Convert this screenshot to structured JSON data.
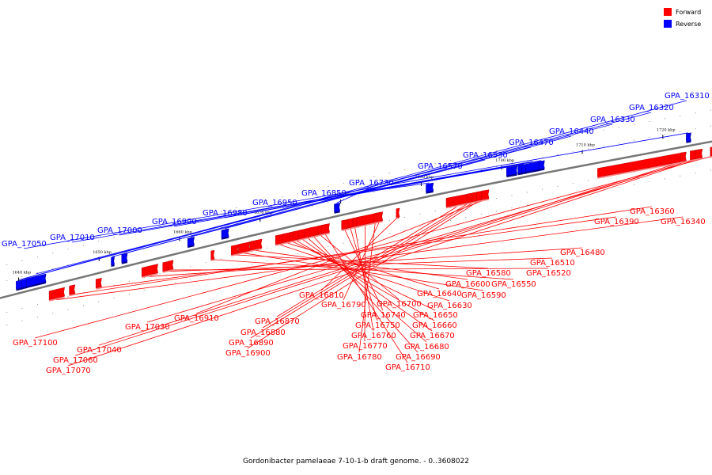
{
  "caption": "Gordonibacter pamelaeae 7-10-1-b draft genome. - 0..3608022",
  "colors": {
    "forward": "#ff0000",
    "forward_dark": "#b80000",
    "forward_light": "#ff8080",
    "reverse": "#0000ff",
    "reverse_dark": "#00008a",
    "backbone": "#777777"
  },
  "legend": [
    {
      "label": "Forward",
      "strand": "forward"
    },
    {
      "label": "Reverse",
      "strand": "reverse"
    }
  ],
  "view": {
    "start_kbp": 1637.5,
    "end_kbp": 1726.5
  },
  "ticks": [
    {
      "kbp": 1640,
      "label": "1640 kbp"
    },
    {
      "kbp": 1650,
      "label": "1650 kbp"
    },
    {
      "kbp": 1660,
      "label": "1660 kbp"
    },
    {
      "kbp": 1670,
      "label": "1670 kbp"
    },
    {
      "kbp": 1680,
      "label": "1680 kbp"
    },
    {
      "kbp": 1690,
      "label": "1690 kbp"
    },
    {
      "kbp": 1700,
      "label": "1700 kbp"
    },
    {
      "kbp": 1710,
      "label": "1710 kbp"
    },
    {
      "kbp": 1720,
      "label": "1720 kbp"
    }
  ],
  "genes": [
    {
      "name": "GPA_16310",
      "strand": "reverse",
      "start": 1639.7,
      "end": 1640.4
    },
    {
      "name": "GPA_16320",
      "strand": "reverse",
      "start": 1640.4,
      "end": 1641.0
    },
    {
      "name": "GPA_16330",
      "strand": "reverse",
      "start": 1641.0,
      "end": 1643.3
    },
    {
      "name": "GPA_16340",
      "strand": "forward",
      "start": 1643.8,
      "end": 1645.6
    },
    {
      "name": "GPA_16360",
      "strand": "forward",
      "start": 1646.3,
      "end": 1646.9
    },
    {
      "name": "GPA_16390",
      "strand": "forward",
      "start": 1649.6,
      "end": 1650.2
    },
    {
      "name": "GPA_16440",
      "strand": "reverse",
      "start": 1651.5,
      "end": 1651.8
    },
    {
      "name": "GPA_16470",
      "strand": "reverse",
      "start": 1652.8,
      "end": 1653.4
    },
    {
      "name": "GPA_16480",
      "strand": "forward",
      "start": 1655.3,
      "end": 1657.2
    },
    {
      "name": "GPA_16510",
      "strand": "forward",
      "start": 1657.9,
      "end": 1658.6
    },
    {
      "name": "GPA_16520",
      "strand": "forward",
      "start": 1658.6,
      "end": 1659.1
    },
    {
      "name": "GPA_16530",
      "strand": "reverse",
      "start": 1661.0,
      "end": 1661.7
    },
    {
      "name": "GPA_16550",
      "strand": "forward",
      "start": 1663.9,
      "end": 1664.2
    },
    {
      "name": "GPA_16570",
      "strand": "reverse",
      "start": 1665.2,
      "end": 1666.0
    },
    {
      "name": "GPA_16580",
      "strand": "forward",
      "start": 1666.4,
      "end": 1667.2
    },
    {
      "name": "GPA_16590",
      "strand": "forward",
      "start": 1667.3,
      "end": 1668.6
    },
    {
      "name": "GPA_16600",
      "strand": "forward",
      "start": 1668.7,
      "end": 1670.1
    },
    {
      "name": "GPA_16630",
      "strand": "forward",
      "start": 1671.9,
      "end": 1672.8
    },
    {
      "name": "GPA_16640",
      "strand": "forward",
      "start": 1672.8,
      "end": 1673.7
    },
    {
      "name": "GPA_16650",
      "strand": "forward",
      "start": 1673.7,
      "end": 1674.1
    },
    {
      "name": "GPA_16660",
      "strand": "forward",
      "start": 1674.1,
      "end": 1674.8
    },
    {
      "name": "GPA_16670",
      "strand": "forward",
      "start": 1674.8,
      "end": 1675.6
    },
    {
      "name": "GPA_16680",
      "strand": "forward",
      "start": 1675.6,
      "end": 1676.1
    },
    {
      "name": "GPA_16690",
      "strand": "forward",
      "start": 1676.1,
      "end": 1677.2
    },
    {
      "name": "GPA_16700",
      "strand": "forward",
      "start": 1677.2,
      "end": 1677.6
    },
    {
      "name": "GPA_16710",
      "strand": "forward",
      "start": 1677.6,
      "end": 1678.5
    },
    {
      "name": "GPA_16730",
      "strand": "reverse",
      "start": 1679.2,
      "end": 1679.8
    },
    {
      "name": "GPA_16740",
      "strand": "forward",
      "start": 1680.1,
      "end": 1680.9
    },
    {
      "name": "GPA_16750",
      "strand": "forward",
      "start": 1680.9,
      "end": 1681.5
    },
    {
      "name": "GPA_16760",
      "strand": "forward",
      "start": 1681.5,
      "end": 1682.0
    },
    {
      "name": "GPA_16770",
      "strand": "forward",
      "start": 1682.0,
      "end": 1684.1
    },
    {
      "name": "GPA_16780",
      "strand": "forward",
      "start": 1684.1,
      "end": 1684.5
    },
    {
      "name": "GPA_16790",
      "strand": "forward",
      "start": 1684.5,
      "end": 1685.1
    },
    {
      "name": "GPA_16810",
      "strand": "forward",
      "start": 1686.9,
      "end": 1687.2
    },
    {
      "name": "GPA_16850",
      "strand": "reverse",
      "start": 1690.6,
      "end": 1691.4
    },
    {
      "name": "GPA_16870",
      "strand": "forward",
      "start": 1693.1,
      "end": 1695.7
    },
    {
      "name": "GPA_16880",
      "strand": "forward",
      "start": 1695.7,
      "end": 1696.3
    },
    {
      "name": "GPA_16890",
      "strand": "forward",
      "start": 1696.3,
      "end": 1696.9
    },
    {
      "name": "GPA_16900",
      "strand": "forward",
      "start": 1696.9,
      "end": 1697.5
    },
    {
      "name": "GPA_16910",
      "strand": "forward",
      "start": 1697.5,
      "end": 1698.3
    },
    {
      "name": "GPA_16950",
      "strand": "reverse",
      "start": 1700.6,
      "end": 1701.8
    },
    {
      "name": "GPA_16980",
      "strand": "reverse",
      "start": 1702.0,
      "end": 1702.5
    },
    {
      "name": "GPA_16990",
      "strand": "reverse",
      "start": 1702.5,
      "end": 1703.0
    },
    {
      "name": "GPA_17000",
      "strand": "reverse",
      "start": 1703.0,
      "end": 1704.6
    },
    {
      "name": "GPA_17010",
      "strand": "reverse",
      "start": 1704.6,
      "end": 1705.2
    },
    {
      "name": "GPA_17030",
      "strand": "forward",
      "start": 1711.9,
      "end": 1722.2
    },
    {
      "name": "GPA_17040",
      "strand": "forward",
      "start": 1722.2,
      "end": 1722.8
    },
    {
      "name": "GPA_17050",
      "strand": "reverse",
      "start": 1722.9,
      "end": 1723.4
    },
    {
      "name": "GPA_17060",
      "strand": "forward",
      "start": 1723.4,
      "end": 1724.0
    },
    {
      "name": "GPA_17070",
      "strand": "forward",
      "start": 1724.0,
      "end": 1724.8
    },
    {
      "name": "GPA_17100",
      "strand": "forward",
      "start": 1725.9,
      "end": 1726.5
    }
  ]
}
